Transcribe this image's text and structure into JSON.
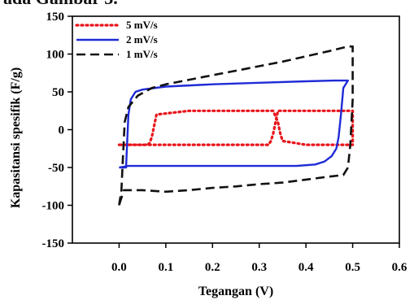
{
  "caption": "ada Gambar 3.",
  "chart_data": {
    "type": "line",
    "xlabel": "Tegangan (V)",
    "ylabel": "Kapasitansi spesifik (F/g)",
    "xlim": [
      -0.1,
      0.6
    ],
    "ylim": [
      -150,
      150
    ],
    "xticks": [
      0.0,
      0.1,
      0.2,
      0.3,
      0.4,
      0.5,
      0.6
    ],
    "xtick_labels": [
      "0.0",
      "0.1",
      "0.2",
      "0.3",
      "0.4",
      "0.5",
      "0.6"
    ],
    "yticks": [
      -150,
      -100,
      -50,
      0,
      50,
      100,
      150
    ],
    "ytick_labels": [
      "-150",
      "-100",
      "-50",
      "0",
      "50",
      "100",
      "150"
    ],
    "grid": false,
    "legend_position": "top-left",
    "series": [
      {
        "name": "5 mV/s",
        "color": "#e8141b",
        "style": "dotted",
        "x": [
          0.0,
          0.06,
          0.065,
          0.07,
          0.075,
          0.08,
          0.15,
          0.25,
          0.33,
          0.34,
          0.345,
          0.35,
          0.4,
          0.45,
          0.5,
          0.5,
          0.45,
          0.4,
          0.34,
          0.335,
          0.33,
          0.325,
          0.32,
          0.25,
          0.15,
          0.07,
          0.0
        ],
        "y": [
          -20,
          -20,
          -18,
          -10,
          5,
          20,
          25,
          25,
          25,
          10,
          -5,
          -15,
          -20,
          -20,
          -20,
          25,
          25,
          25,
          25,
          10,
          -5,
          -15,
          -20,
          -20,
          -20,
          -20,
          -20
        ]
      },
      {
        "name": "2 mV/s",
        "color": "#1f2bd6",
        "style": "solid",
        "x": [
          0.0,
          0.015,
          0.017,
          0.02,
          0.025,
          0.035,
          0.05,
          0.1,
          0.2,
          0.3,
          0.4,
          0.46,
          0.47,
          0.49,
          0.48,
          0.475,
          0.47,
          0.465,
          0.455,
          0.44,
          0.42,
          0.38,
          0.3,
          0.2,
          0.1,
          0.02,
          0.0
        ],
        "y": [
          -50,
          -50,
          -20,
          20,
          40,
          50,
          53,
          57,
          60,
          62,
          64,
          65,
          65,
          65,
          55,
          20,
          -10,
          -25,
          -35,
          -42,
          -46,
          -48,
          -48,
          -48,
          -48,
          -48,
          -50
        ]
      },
      {
        "name": "1 mV/s",
        "color": "#111111",
        "style": "dashed",
        "x": [
          0.0,
          0.005,
          0.008,
          0.012,
          0.02,
          0.04,
          0.07,
          0.1,
          0.15,
          0.2,
          0.25,
          0.3,
          0.35,
          0.4,
          0.45,
          0.49,
          0.5,
          0.5,
          0.495,
          0.49,
          0.48,
          0.45,
          0.4,
          0.35,
          0.3,
          0.25,
          0.2,
          0.15,
          0.1,
          0.05,
          0.01,
          0.0
        ],
        "y": [
          -100,
          -80,
          -40,
          10,
          30,
          45,
          55,
          60,
          66,
          72,
          78,
          84,
          90,
          97,
          104,
          110,
          110,
          40,
          -20,
          -50,
          -60,
          -62,
          -66,
          -70,
          -72,
          -75,
          -77,
          -80,
          -82,
          -80,
          -80,
          -100
        ]
      }
    ]
  }
}
